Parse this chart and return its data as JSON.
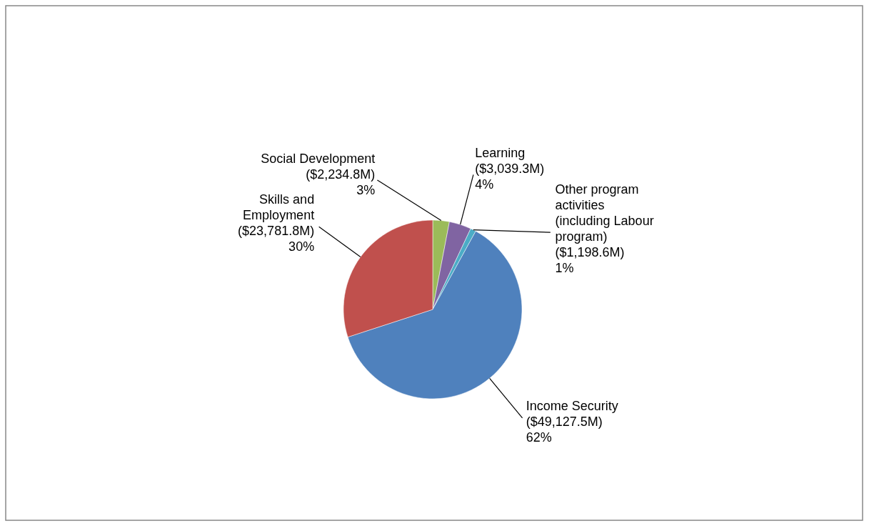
{
  "chart_data": {
    "type": "pie",
    "categories": [
      "Social Development",
      "Learning",
      "Other program activities (including Labour program)",
      "Income Security",
      "Skills and Employment"
    ],
    "values": [
      3,
      4,
      1,
      62,
      30
    ],
    "value_labels": [
      "($2,234.8M)\n3%",
      "($3,039.3M)\n4%",
      "($1,198.6M)\n1%",
      "($49,127.5M)\n62%",
      "($23,781.8M)\n30%"
    ],
    "colors": [
      "#9bbb59",
      "#8064a2",
      "#4bacc6",
      "#4f81bd",
      "#c0504d"
    ]
  }
}
